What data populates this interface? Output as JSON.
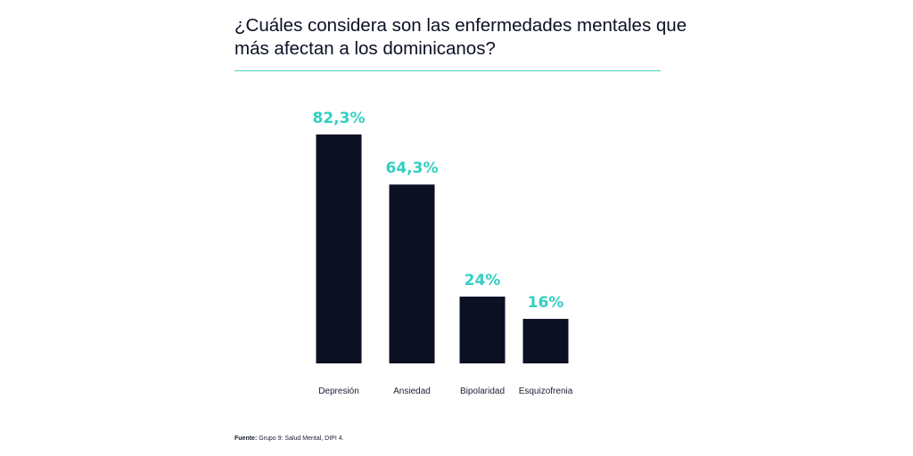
{
  "chart_data": {
    "type": "bar",
    "title": "¿Cuáles considera son las enfermedades mentales que más afectan a los dominicanos?",
    "categories": [
      "Depresión",
      "Ansiedad",
      "Bipolaridad",
      "Esquizofrenia"
    ],
    "values": [
      82.3,
      64.3,
      24,
      16
    ],
    "value_labels": [
      "82,3%",
      "64,3%",
      "24%",
      "16%"
    ],
    "unit": "%",
    "grid": false,
    "legend": "none",
    "colors": {
      "bar": "#0b1023",
      "value_label": "#33cfc2",
      "rule": "#4fd1c5"
    }
  },
  "source": {
    "label": "Fuente:",
    "text": " Grupo 9: Salud Mental, DIPI 4."
  }
}
